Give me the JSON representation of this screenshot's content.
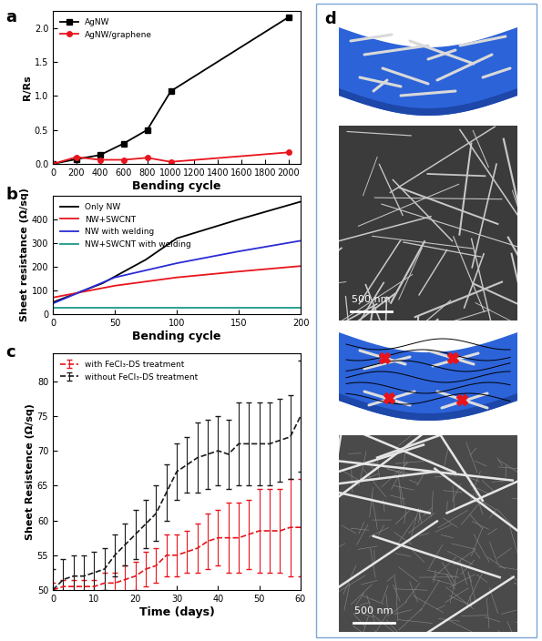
{
  "panel_labels": [
    "a",
    "b",
    "c",
    "d"
  ],
  "chart_data": [
    {
      "type": "line",
      "x_label": "Bending cycle",
      "y_label": "R/Rs",
      "x": [
        0,
        200,
        400,
        600,
        800,
        1000,
        2000
      ],
      "series": [
        {
          "name": "AgNW",
          "color": "#000000",
          "marker": "square",
          "line_style": "solid",
          "values": [
            0.0,
            0.07,
            0.13,
            0.3,
            0.5,
            1.07,
            2.16
          ]
        },
        {
          "name": "AgNW/graphene",
          "color": "#e8141c",
          "marker": "circle",
          "line_style": "solid",
          "values": [
            0.0,
            0.1,
            0.06,
            0.06,
            0.09,
            0.03,
            0.17
          ]
        }
      ],
      "xlim": [
        0,
        2100
      ],
      "xticks": [
        0,
        200,
        400,
        600,
        800,
        1000,
        1200,
        1400,
        1600,
        1800,
        2000
      ],
      "ylim": [
        0.0,
        2.25
      ],
      "yticks": [
        0.0,
        0.5,
        1.0,
        1.5,
        2.0
      ],
      "legend": "upper left"
    },
    {
      "type": "line",
      "x_label": "Bending cycle",
      "y_label": "Sheet resistance (Ω/sq)",
      "series": [
        {
          "name": "Only NW",
          "color": "#000000",
          "line_style": "solid",
          "x": [
            0,
            40,
            75,
            100,
            150,
            200
          ],
          "values": [
            50,
            130,
            230,
            320,
            400,
            475
          ]
        },
        {
          "name": "NW+SWCNT",
          "color": "#e8141c",
          "line_style": "solid",
          "x": [
            0,
            50,
            100,
            150,
            200
          ],
          "values": [
            70,
            120,
            155,
            180,
            203
          ]
        },
        {
          "name": "NW with welding",
          "color": "#2b2bd6",
          "line_style": "solid",
          "x": [
            0,
            50,
            100,
            150,
            200
          ],
          "values": [
            45,
            155,
            215,
            265,
            310
          ]
        },
        {
          "name": "NW+SWCNT with welding",
          "color": "#1a9a8a",
          "line_style": "solid",
          "x": [
            0,
            200
          ],
          "values": [
            25,
            25
          ]
        }
      ],
      "xlim": [
        0,
        200
      ],
      "xticks": [
        0,
        50,
        100,
        150,
        200
      ],
      "ylim": [
        0,
        500
      ],
      "yticks": [
        0,
        100,
        200,
        300,
        400
      ],
      "legend": "upper left"
    },
    {
      "type": "line",
      "x_label": "Time (days)",
      "y_label": "Sheet Resistence (Ω/sq)",
      "x": [
        0,
        2.5,
        5,
        7.5,
        10,
        12.5,
        15,
        17.5,
        20,
        22.5,
        25,
        27.5,
        30,
        32.5,
        35,
        37.5,
        40,
        42.5,
        45,
        47.5,
        50,
        52.5,
        55,
        57.5,
        60
      ],
      "series": [
        {
          "name": "with FeCl₃-DS treatment",
          "color": "#e8141c",
          "line_style": "dashed",
          "values": [
            50,
            50.5,
            50.5,
            50.5,
            50.5,
            51,
            51,
            51.5,
            52,
            53,
            53.5,
            55,
            55,
            55.5,
            56,
            57,
            57.5,
            57.5,
            57.5,
            58,
            58.5,
            58.5,
            58.5,
            59,
            59
          ],
          "errors": [
            1,
            1,
            1,
            1,
            1,
            1.5,
            1.5,
            2,
            2,
            2.5,
            2.5,
            3,
            3,
            3,
            3.5,
            4,
            4,
            5,
            5,
            5,
            6,
            6,
            6,
            7,
            7
          ]
        },
        {
          "name": "without FeCl₃-DS treatment",
          "color": "#1a1a1a",
          "line_style": "dashed",
          "values": [
            50,
            51.5,
            52,
            52,
            52.5,
            53,
            55,
            56.5,
            58,
            59.5,
            61,
            64,
            67,
            68,
            69,
            69.5,
            70,
            69.5,
            71,
            71,
            71,
            71,
            71.5,
            72,
            75
          ],
          "errors": [
            3,
            3,
            3,
            3,
            3,
            3,
            3,
            3,
            3.5,
            3.5,
            4,
            4,
            4,
            4,
            5,
            5,
            5,
            5,
            6,
            6,
            6,
            6,
            6,
            6,
            8
          ]
        }
      ],
      "xlim": [
        0,
        60
      ],
      "xticks": [
        0,
        10,
        20,
        30,
        40,
        50,
        60
      ],
      "ylim": [
        50,
        84
      ],
      "yticks": [
        50,
        55,
        60,
        65,
        70,
        75,
        80
      ],
      "legend": "upper left"
    }
  ],
  "panel_d": {
    "scale_bars": [
      "500 nm",
      "500 nm"
    ]
  }
}
